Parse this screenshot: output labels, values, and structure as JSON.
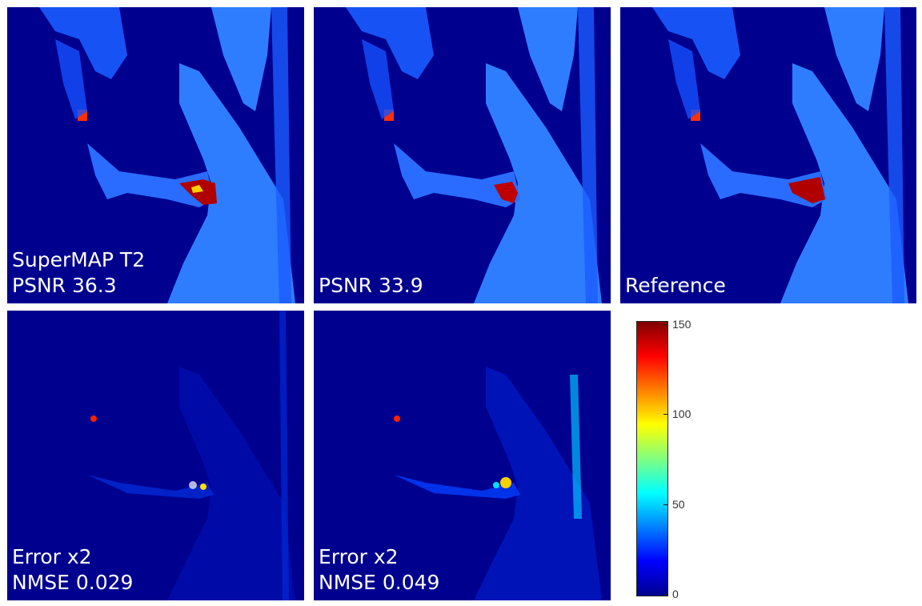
{
  "panels": [
    {
      "id": "supermap",
      "caption_line1": "SuperMAP T2",
      "caption_line2": "PSNR 36.3"
    },
    {
      "id": "baseline",
      "caption_line1": "PSNR 33.9"
    },
    {
      "id": "reference",
      "caption_line1": "Reference"
    },
    {
      "id": "error-supermap",
      "caption_line1": "Error x2",
      "caption_line2": "NMSE 0.029"
    },
    {
      "id": "error-baseline",
      "caption_line1": "Error x2",
      "caption_line2": "NMSE 0.049"
    }
  ],
  "colorbar": {
    "colormap": "jet",
    "range": [
      0,
      150
    ],
    "tick_labels": [
      "150",
      "100",
      "50",
      "0"
    ],
    "low_color": "#00008f",
    "high_color": "#800000"
  }
}
